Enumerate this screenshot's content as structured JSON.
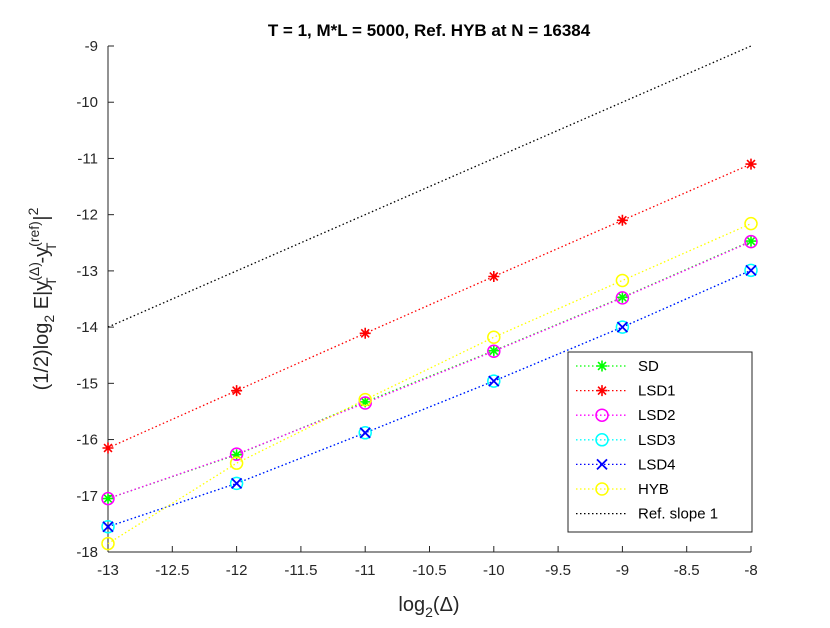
{
  "chart_data": {
    "type": "line",
    "title": "T = 1, M*L  = 5000, Ref. HYB at N = 16384",
    "xlabel": {
      "prefix": "log",
      "sub": "2",
      "suffix": "(Δ)"
    },
    "ylabel": {
      "p1": "(1/2)log",
      "p1_sub": "2",
      "p2": " E|y",
      "p2_sup": "(Δ)",
      "p2_sub": "T",
      "p3": "-y",
      "p3_sup": "(ref)",
      "p3_sub": "T",
      "p4": "|",
      "p4_sup": "2"
    },
    "x": [
      -13,
      -12,
      -11,
      -10,
      -9,
      -8
    ],
    "xlim": [
      -13,
      -8
    ],
    "ylim": [
      -18,
      -9
    ],
    "xticks": [
      "-13",
      "-12.5",
      "-12",
      "-11.5",
      "-11",
      "-10.5",
      "-10",
      "-9.5",
      "-9",
      "-8.5",
      "-8"
    ],
    "yticks": [
      "-18",
      "-17",
      "-16",
      "-15",
      "-14",
      "-13",
      "-12",
      "-11",
      "-10",
      "-9"
    ],
    "grid": false,
    "legend_position": "bottom-right",
    "series": [
      {
        "name": "SD",
        "color": "#00ff00",
        "marker": "asterisk",
        "values": [
          -17.05,
          -16.27,
          -15.33,
          -14.42,
          -13.47,
          -12.47
        ]
      },
      {
        "name": "LSD1",
        "color": "#ff0000",
        "marker": "asterisk",
        "values": [
          -16.15,
          -15.13,
          -14.11,
          -13.1,
          -12.1,
          -11.1
        ]
      },
      {
        "name": "LSD2",
        "color": "#ff00ff",
        "marker": "circle",
        "values": [
          -17.05,
          -16.26,
          -15.35,
          -14.43,
          -13.48,
          -12.48
        ]
      },
      {
        "name": "LSD3",
        "color": "#00ffff",
        "marker": "circle",
        "values": [
          -17.55,
          -16.78,
          -15.88,
          -14.96,
          -14.0,
          -12.99
        ]
      },
      {
        "name": "LSD4",
        "color": "#0000ff",
        "marker": "x",
        "values": [
          -17.55,
          -16.78,
          -15.88,
          -14.96,
          -14.0,
          -12.99
        ]
      },
      {
        "name": "HYB",
        "color": "#ffff00",
        "marker": "circle",
        "values": [
          -17.85,
          -16.42,
          -15.29,
          -14.18,
          -13.17,
          -12.16
        ]
      },
      {
        "name": "Ref. slope 1",
        "color": "#000000",
        "marker": "none",
        "x": [
          -13,
          -8
        ],
        "values": [
          -14,
          -9
        ]
      }
    ]
  }
}
